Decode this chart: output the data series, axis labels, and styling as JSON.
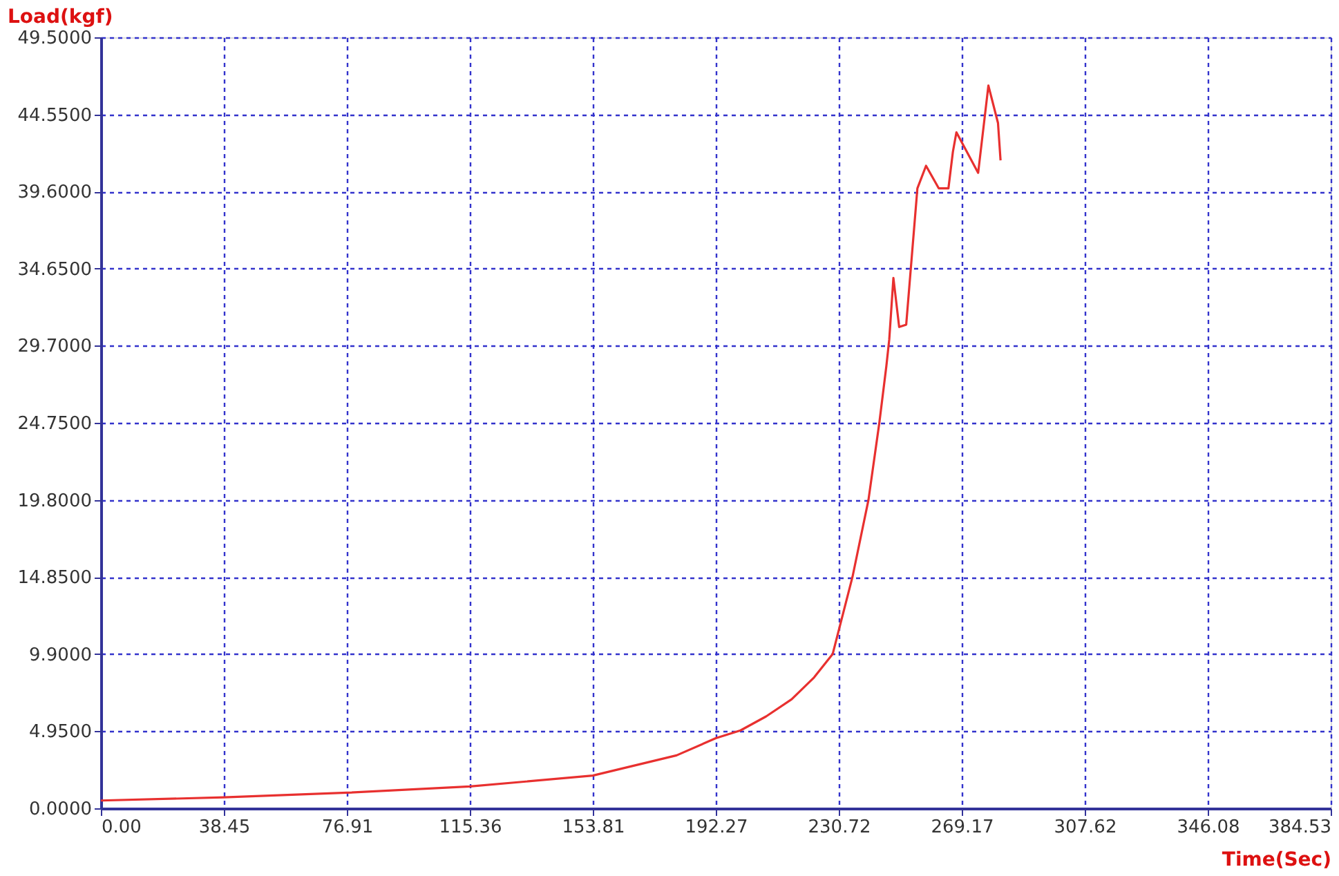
{
  "chart_data": {
    "type": "line",
    "xlabel": "Time(Sec)",
    "ylabel": "Load(kgf)",
    "x": [
      0,
      38.45,
      76.91,
      115.36,
      153.81,
      180,
      192.27,
      200,
      208,
      216,
      223,
      228.8,
      235,
      240,
      243.4,
      245.6,
      246.5,
      247.8,
      249.6,
      251.8,
      255.3,
      258,
      262,
      265,
      266.4,
      267.5,
      274.3,
      277.5,
      280.5,
      281.3
    ],
    "series": [
      {
        "color": "#e8302f",
        "values": [
          0.5,
          0.7,
          1.0,
          1.4,
          2.1,
          3.4,
          4.5,
          5.0,
          5.9,
          7.0,
          8.4,
          9.9,
          14.85,
          19.8,
          24.75,
          28.4,
          30.1,
          34.05,
          30.9,
          31.05,
          39.8,
          41.25,
          39.8,
          39.8,
          42.15,
          43.4,
          40.8,
          46.4,
          44.0,
          41.6
        ]
      }
    ],
    "xlim": [
      0,
      384.53
    ],
    "ylim": [
      0,
      49.5
    ],
    "xticks": [
      {
        "value": 0,
        "label": "0.00"
      },
      38.45,
      76.91,
      115.36,
      153.81,
      192.27,
      230.72,
      269.17,
      307.62,
      346.08,
      384.53
    ],
    "yticks": [
      {
        "value": 0,
        "label": "0.0000"
      },
      {
        "value": 4.95,
        "label": "4.9500"
      },
      {
        "value": 9.9,
        "label": "9.9000"
      },
      {
        "value": 14.85,
        "label": "14.8500"
      },
      {
        "value": 19.8,
        "label": "19.8000"
      },
      {
        "value": 24.75,
        "label": "24.7500"
      },
      {
        "value": 29.7,
        "label": "29.7000"
      },
      {
        "value": 34.65,
        "label": "34.6500"
      },
      {
        "value": 39.6,
        "label": "39.6000"
      },
      {
        "value": 44.55,
        "label": "44.5500"
      },
      {
        "value": 49.5,
        "label": "49.5000"
      }
    ],
    "grid": true,
    "legend": false,
    "marker": "none",
    "line_style": "solid"
  }
}
